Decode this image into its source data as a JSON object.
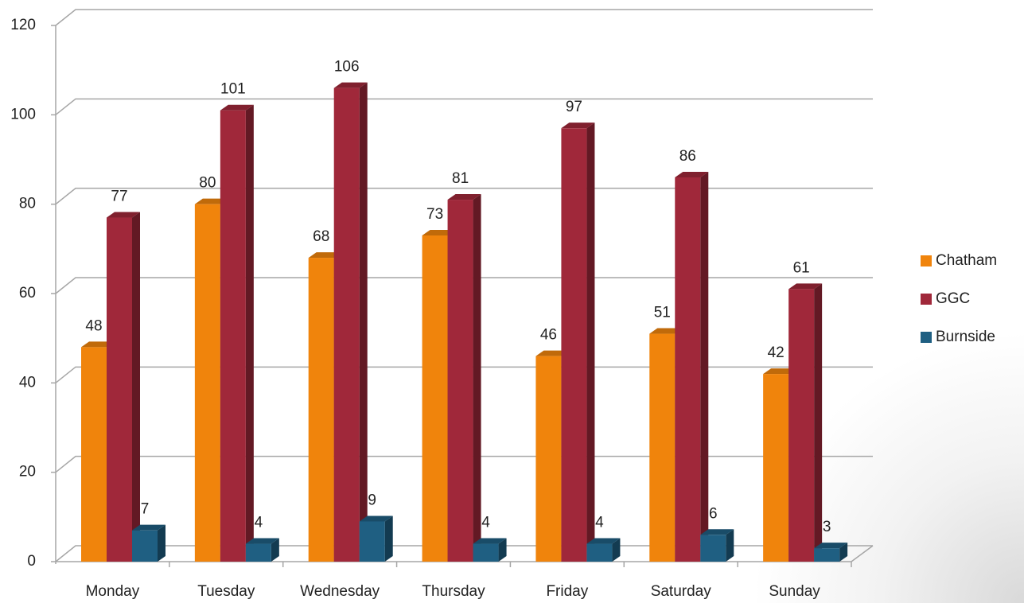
{
  "chart_data": {
    "type": "bar3d",
    "categories": [
      "Monday",
      "Tuesday",
      "Wednesday",
      "Thursday",
      "Friday",
      "Saturday",
      "Sunday"
    ],
    "series": [
      {
        "name": "Chatham",
        "color": "#f0840c",
        "values": [
          48,
          80,
          68,
          73,
          46,
          51,
          42
        ]
      },
      {
        "name": "GGC",
        "color": "#a0283a",
        "values": [
          77,
          101,
          106,
          81,
          97,
          86,
          61
        ]
      },
      {
        "name": "Burnside",
        "color": "#1f5f82",
        "values": [
          7,
          4,
          9,
          4,
          4,
          6,
          3
        ]
      }
    ],
    "ylim": [
      0,
      120
    ],
    "yticks": [
      0,
      20,
      40,
      60,
      80,
      100,
      120
    ],
    "grid": true,
    "legend": "right"
  }
}
